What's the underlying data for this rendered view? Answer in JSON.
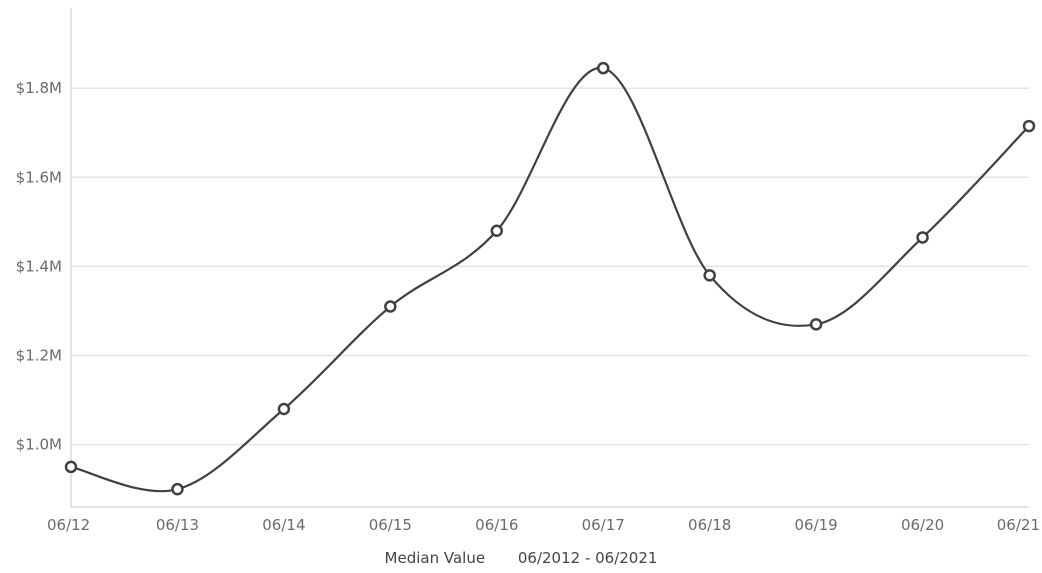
{
  "chart_data": {
    "type": "line",
    "categories": [
      "06/12",
      "06/13",
      "06/14",
      "06/15",
      "06/16",
      "06/17",
      "06/18",
      "06/19",
      "06/20",
      "06/21"
    ],
    "series": [
      {
        "values": [
          0.95,
          0.9,
          1.08,
          1.31,
          1.48,
          1.845,
          1.38,
          1.27,
          1.465,
          1.715
        ]
      }
    ],
    "ylim": [
      0.86,
      1.98
    ],
    "yticks": [
      1.0,
      1.2,
      1.4,
      1.6,
      1.8
    ],
    "ytick_labels": [
      "$1.0M",
      "$1.2M",
      "$1.4M",
      "$1.6M",
      "$1.8M"
    ],
    "grid": true,
    "legend": {
      "series_label": "Median Value",
      "range_label": "06/2012 - 06/2021"
    },
    "colors": {
      "line": "#404040",
      "grid": "#e4e4e4",
      "axis": "#c8c8c8"
    }
  }
}
